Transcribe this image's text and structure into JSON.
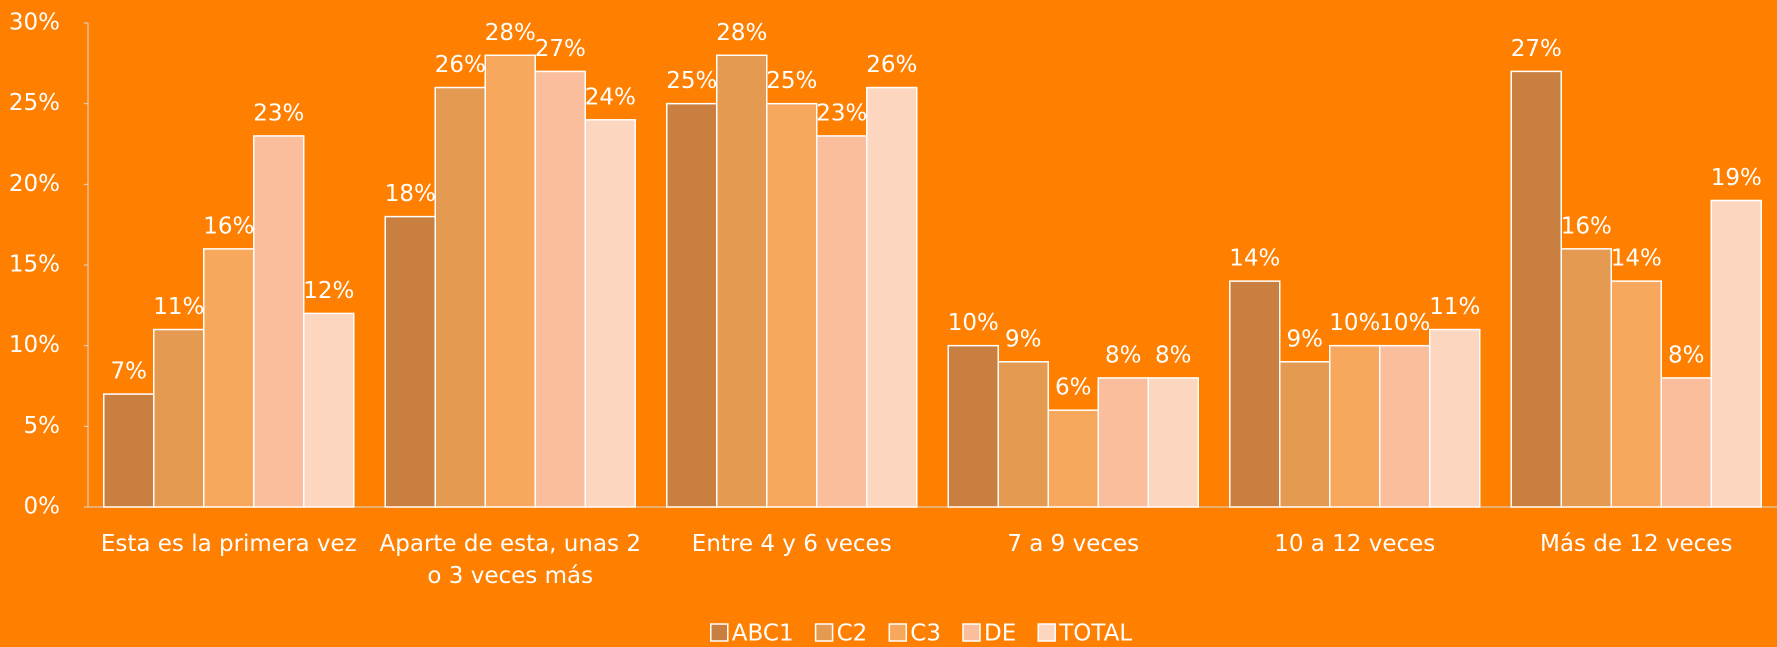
{
  "chart_data": {
    "type": "bar",
    "categories": [
      "Esta es la primera vez",
      "Aparte de esta, unas 2 o 3 veces más",
      "Entre 4 y 6 veces",
      "7 a 9 veces",
      "10 a 12 veces",
      "Más de 12 veces"
    ],
    "series": [
      {
        "name": "ABC1",
        "color": "#c87f40",
        "values": [
          7,
          18,
          25,
          10,
          14,
          27
        ],
        "value_labels": [
          "7%",
          "18%",
          "25%",
          "10%",
          "14%",
          "27%"
        ]
      },
      {
        "name": "C2",
        "color": "#e59a52",
        "values": [
          11,
          26,
          28,
          9,
          9,
          16
        ],
        "value_labels": [
          "11%",
          "26%",
          "28%",
          "9%",
          "9%",
          "16%"
        ]
      },
      {
        "name": "C3",
        "color": "#f7a85d",
        "values": [
          16,
          28,
          25,
          6,
          10,
          14
        ],
        "value_labels": [
          "16%",
          "28%",
          "25%",
          "6%",
          "10%",
          "14%"
        ]
      },
      {
        "name": "DE",
        "color": "#fbbe9c",
        "values": [
          23,
          27,
          23,
          8,
          10,
          8
        ],
        "value_labels": [
          "23%",
          "27%",
          "23%",
          "8%",
          "10%",
          "8%"
        ]
      },
      {
        "name": "TOTAL",
        "color": "#fdd6c0",
        "values": [
          12,
          24,
          26,
          8,
          11,
          19
        ],
        "value_labels": [
          "12%",
          "24%",
          "26%",
          "8%",
          "11%",
          "19%"
        ]
      }
    ],
    "ylim": [
      0,
      30
    ],
    "yticks": [
      {
        "value": 0,
        "label": "0%"
      },
      {
        "value": 5,
        "label": "5%"
      },
      {
        "value": 10,
        "label": "10%"
      },
      {
        "value": 15,
        "label": "15%"
      },
      {
        "value": 20,
        "label": "20%"
      },
      {
        "value": 25,
        "label": "25%"
      },
      {
        "value": 30,
        "label": "30%"
      }
    ],
    "legend": "bottom"
  }
}
